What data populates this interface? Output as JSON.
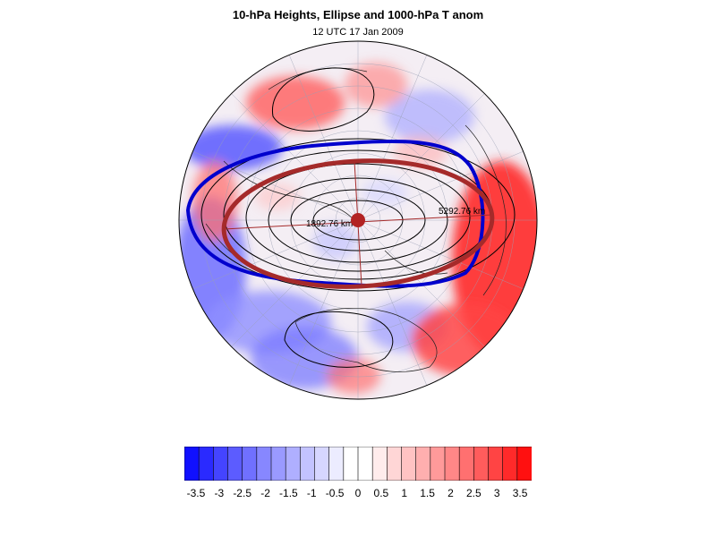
{
  "title": "10-hPa Heights, Ellipse and 1000-hPa T anom",
  "subtitle": "12 UTC 17 Jan 2009",
  "annotations": {
    "major_axis_label": "5292.76 km",
    "minor_axis_label": "1892.76 km"
  },
  "colors": {
    "ellipse": "#a52a2a",
    "contour_highlight": "#0000cd",
    "contours": "#000000",
    "center_marker": "#b22222"
  },
  "colorbar": {
    "labels": [
      "-3.5",
      "-3",
      "-2.5",
      "-2",
      "-1.5",
      "-1",
      "-0.5",
      "0",
      "0.5",
      "1",
      "1.5",
      "2",
      "2.5",
      "3",
      "3.5"
    ],
    "colors": [
      "#1010ff",
      "#2a2aff",
      "#4444ff",
      "#5c5cff",
      "#7070ff",
      "#8787ff",
      "#9a9aff",
      "#afafff",
      "#c3c3ff",
      "#d6d6ff",
      "#ececff",
      "#ffffff",
      "#ffffff",
      "#ffecec",
      "#ffd6d6",
      "#ffc3c3",
      "#ffafaf",
      "#ff9a9a",
      "#ff8787",
      "#ff7070",
      "#ff5c5c",
      "#ff4444",
      "#ff2a2a",
      "#ff1010"
    ]
  }
}
